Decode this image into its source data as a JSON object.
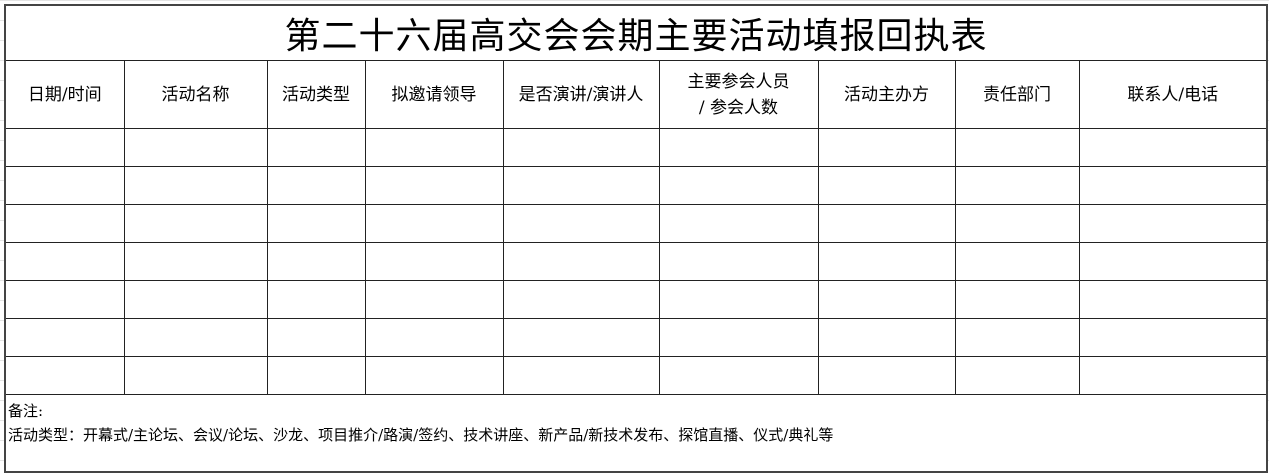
{
  "title": "第二十六届高交会会期主要活动填报回执表",
  "headers": [
    "日期/时间",
    "活动名称",
    "活动类型",
    "拟邀请领导",
    "是否演讲/演讲人",
    [
      "主要参会人员",
      "/ 参会人数"
    ],
    "活动主办方",
    "责任部门",
    "联系人/电话"
  ],
  "notes": {
    "label": "备注:",
    "activity_types": "活动类型：开幕式/主论坛、会议/论坛、沙龙、项目推介/路演/签约、技术讲座、新产品/新技术发布、探馆直播、仪式/典礼等"
  }
}
